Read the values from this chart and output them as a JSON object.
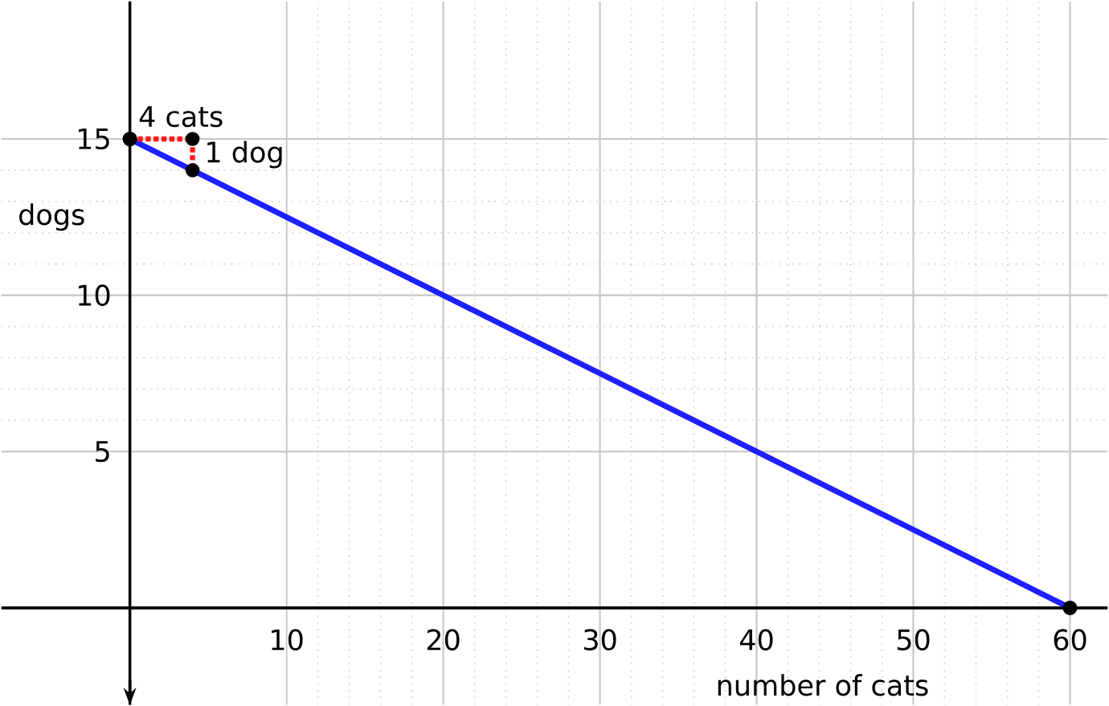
{
  "chart_data": {
    "type": "line",
    "xlabel": "number of cats",
    "ylabel": "dogs",
    "series": [
      {
        "color": "#1f1fff",
        "x": [
          0,
          60
        ],
        "values": [
          15,
          0
        ],
        "line_style": "solid",
        "marker": "circle"
      },
      {
        "color": "#ff1a1a",
        "x": [
          0,
          4,
          4
        ],
        "values": [
          15,
          15,
          14
        ],
        "line_style": "dotted",
        "marker": "circle"
      }
    ],
    "annotations": [
      {
        "text": "4 cats",
        "x": 2,
        "y": 15
      },
      {
        "text": "1 dog",
        "x": 4,
        "y": 14.5
      }
    ],
    "xlim": [
      -8.2,
      62.4
    ],
    "ylim": [
      -3.1,
      19.4
    ],
    "xticks": [
      10,
      20,
      30,
      40,
      50,
      60
    ],
    "yticks": [
      5,
      10,
      15
    ],
    "grid": true
  }
}
